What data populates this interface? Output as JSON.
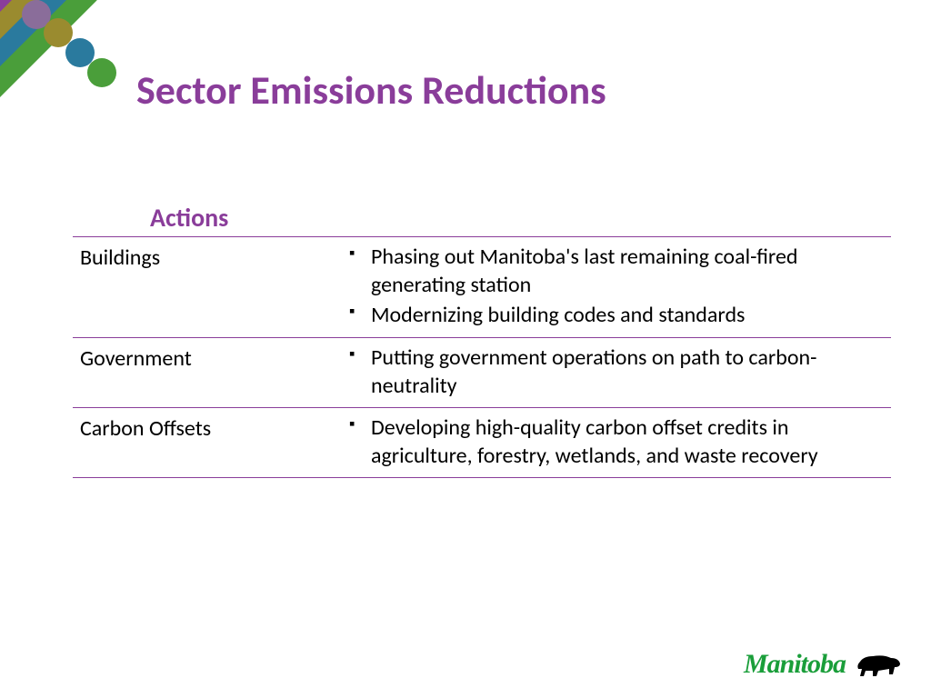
{
  "title": "Sector Emissions Reductions",
  "subheading": "Actions",
  "colors": {
    "title": "#8a3d9a",
    "sub": "#8a3d9a",
    "border": "#8a3d9a",
    "decor_bars": [
      "#8a3d9a",
      "#9a8b2f",
      "#2a7a9e",
      "#4a9e3a"
    ],
    "decor_circles": [
      "#8a6d9a",
      "#9a8b2f",
      "#2a7a9e",
      "#4a9e3a"
    ],
    "footer_text": "#1a9e3a"
  },
  "rows": [
    {
      "sector": "Buildings",
      "items": [
        "Phasing out Manitoba's last remaining coal-fired generating station",
        "Modernizing building codes and standards"
      ]
    },
    {
      "sector": "Government",
      "items": [
        "Putting government operations on path to carbon-neutrality"
      ]
    },
    {
      "sector": "Carbon Offsets",
      "items": [
        "Developing high-quality carbon offset credits in agriculture, forestry, wetlands, and waste recovery"
      ]
    }
  ],
  "footer": "Manitoba"
}
